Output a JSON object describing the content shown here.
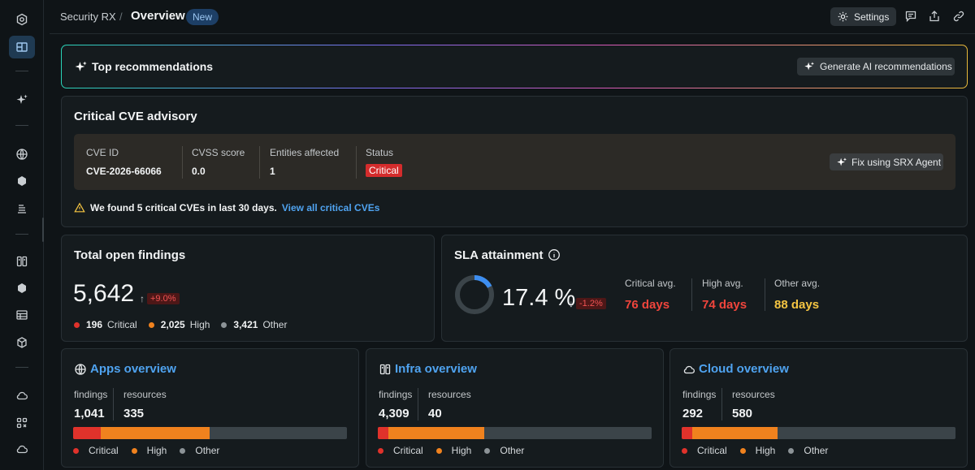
{
  "breadcrumb": {
    "app": "Security RX",
    "separator": "/",
    "title": "Overview",
    "badge": "New"
  },
  "toolbar": {
    "settings_label": "Settings"
  },
  "recommendations": {
    "title": "Top recommendations",
    "generate_label": "Generate AI recommendations"
  },
  "cve": {
    "title": "Critical CVE advisory",
    "columns": [
      {
        "label": "CVE ID",
        "value": "CVE-2026-66066"
      },
      {
        "label": "CVSS score",
        "value": "0.0"
      },
      {
        "label": "Entities affected",
        "value": "1"
      },
      {
        "label": "Status",
        "value": "Critical"
      }
    ],
    "fix_label": "Fix using SRX Agent",
    "warning": "We found 5 critical CVEs in last 30 days.",
    "link": "View all critical CVEs"
  },
  "findings": {
    "title": "Total open findings",
    "total": "5,642",
    "arrow": "↑",
    "delta": "+9.0%",
    "breakdown": [
      {
        "count": "196",
        "label": "Critical",
        "color": "#e0322b"
      },
      {
        "count": "2,025",
        "label": "High",
        "color": "#f0821e"
      },
      {
        "count": "3,421",
        "label": "Other",
        "color": "#8c9397"
      }
    ]
  },
  "sla": {
    "title": "SLA attainment",
    "percent": "17.4 %",
    "percent_value": 17.4,
    "arrow": "↓",
    "delta": "-1.2%",
    "averages": [
      {
        "label": "Critical avg.",
        "value": "76 days",
        "color": "#f0453c"
      },
      {
        "label": "High avg.",
        "value": "74 days",
        "color": "#f0453c"
      },
      {
        "label": "Other avg.",
        "value": "88 days",
        "color": "#f5c542"
      }
    ]
  },
  "overviews": [
    {
      "title": "Apps overview",
      "icon": "globe-icon",
      "findings_label": "findings",
      "findings": "1,041",
      "resources_label": "resources",
      "resources": "335",
      "critical_fraction": 0.1,
      "high_fraction": 0.4,
      "legend": [
        "Critical",
        "High",
        "Other"
      ]
    },
    {
      "title": "Infra overview",
      "icon": "server-icon",
      "findings_label": "findings",
      "findings": "4,309",
      "resources_label": "resources",
      "resources": "40",
      "critical_fraction": 0.04,
      "high_fraction": 0.35,
      "legend": [
        "Critical",
        "High",
        "Other"
      ]
    },
    {
      "title": "Cloud overview",
      "icon": "cloud-icon",
      "findings_label": "findings",
      "findings": "292",
      "resources_label": "resources",
      "resources": "580",
      "critical_fraction": 0.04,
      "high_fraction": 0.31,
      "legend": [
        "Critical",
        "High",
        "Other"
      ]
    }
  ],
  "legend_colors": {
    "critical": "#e0322b",
    "high": "#f0821e",
    "other": "#8c9397"
  }
}
